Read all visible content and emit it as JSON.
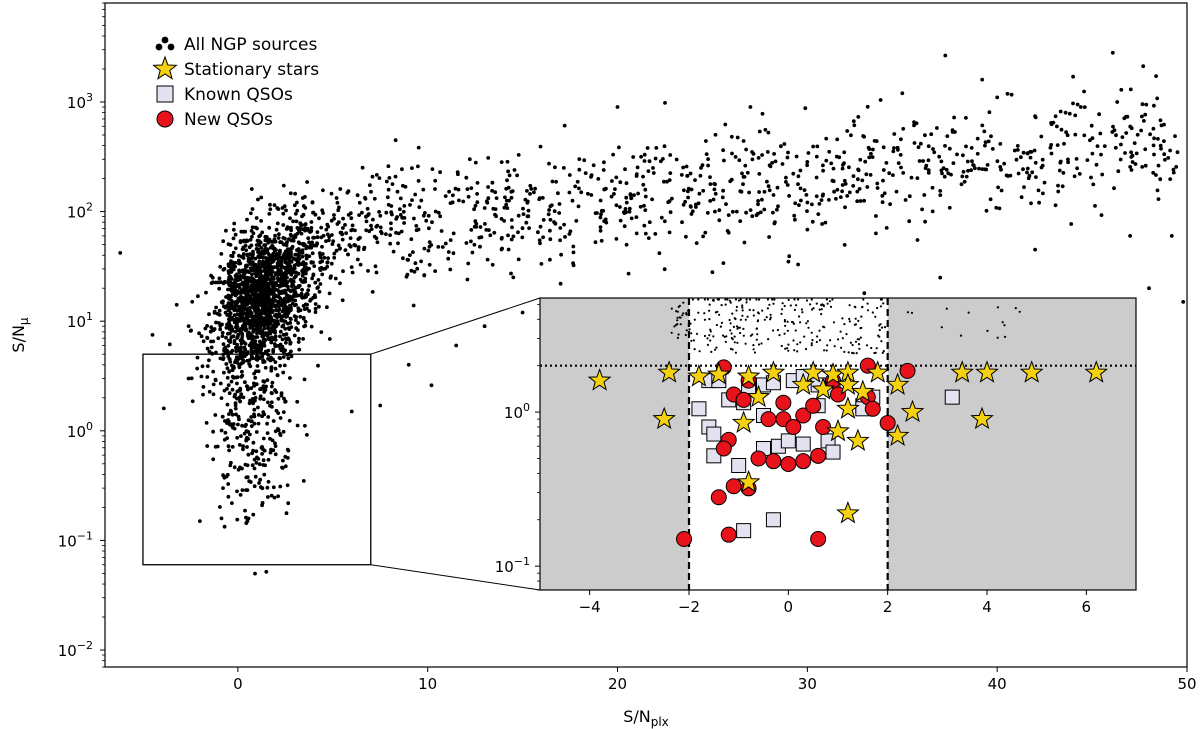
{
  "chart_data": {
    "type": "scatter",
    "xlabel": "S/N",
    "xlabel_sub": "plx",
    "ylabel": "S/N",
    "ylabel_sub": "μ",
    "xlim": [
      -7,
      50
    ],
    "ylim": [
      0.007,
      8000
    ],
    "yscale": "log",
    "x_ticks": [
      0,
      10,
      20,
      30,
      40,
      50
    ],
    "y_ticks": [
      {
        "value": 0.01,
        "exp": "−2"
      },
      {
        "value": 0.1,
        "exp": "−1"
      },
      {
        "value": 1,
        "exp": "0"
      },
      {
        "value": 10,
        "exp": "1"
      },
      {
        "value": 100,
        "exp": "2"
      },
      {
        "value": 1000,
        "exp": "3"
      }
    ],
    "legend": {
      "position": "top-left",
      "entries": [
        {
          "label": "All NGP sources",
          "marker": "dots",
          "color": "#000000"
        },
        {
          "label": "Stationary stars",
          "marker": "star",
          "color": "#f5d10f"
        },
        {
          "label": "Known QSOs",
          "marker": "square",
          "color": "#e2e2f0"
        },
        {
          "label": "New QSOs",
          "marker": "circle",
          "color": "#e8121b"
        }
      ]
    },
    "all_sources_outliers": [
      [
        -6.2,
        42
      ],
      [
        -4.5,
        7.5
      ],
      [
        -3.9,
        1.6
      ],
      [
        -2.6,
        3
      ],
      [
        -2,
        0.15
      ],
      [
        -1.3,
        0.55
      ],
      [
        -0.5,
        0.25
      ],
      [
        0.5,
        0.15
      ],
      [
        1.3,
        0.22
      ],
      [
        6,
        1.5
      ],
      [
        7.5,
        1.7
      ],
      [
        9,
        4
      ],
      [
        10.2,
        2.6
      ],
      [
        11.5,
        6
      ],
      [
        13,
        9
      ],
      [
        15,
        12
      ],
      [
        17,
        22
      ],
      [
        20,
        900
      ],
      [
        22.5,
        980
      ],
      [
        25,
        28
      ],
      [
        27,
        900
      ],
      [
        29,
        35
      ],
      [
        33,
        18
      ],
      [
        35,
        1200
      ],
      [
        37,
        25
      ],
      [
        38,
        14
      ],
      [
        40,
        1100
      ],
      [
        42,
        45
      ],
      [
        44,
        1700
      ],
      [
        45,
        9
      ],
      [
        47,
        60
      ],
      [
        48,
        20
      ],
      [
        48.5,
        130
      ],
      [
        49.2,
        60
      ],
      [
        49.8,
        15
      ],
      [
        39,
        8
      ]
    ],
    "inset": {
      "xlim": [
        -5,
        7
      ],
      "ylim": [
        0.07,
        5.5
      ],
      "yscale": "log",
      "x_ticks": [
        -4,
        -2,
        0,
        2,
        4,
        6
      ],
      "y_ticks": [
        {
          "value": 0.1,
          "exp": "−1"
        },
        {
          "value": 1,
          "exp": "0"
        }
      ],
      "x_cut": [
        -2,
        2
      ],
      "y_cut": 2,
      "zoom_box_main": {
        "x": [
          -5,
          7
        ],
        "y": [
          0.06,
          5
        ]
      },
      "stationary_stars": [
        [
          -3.8,
          1.6
        ],
        [
          -2.5,
          0.9
        ],
        [
          -2.4,
          1.8
        ],
        [
          -1.8,
          1.7
        ],
        [
          -1.4,
          1.75
        ],
        [
          -0.8,
          1.7
        ],
        [
          -0.3,
          1.8
        ],
        [
          0.5,
          1.8
        ],
        [
          0.9,
          1.75
        ],
        [
          1.2,
          1.8
        ],
        [
          -0.6,
          1.25
        ],
        [
          0.3,
          1.5
        ],
        [
          0.7,
          1.4
        ],
        [
          1.2,
          1.5
        ],
        [
          1.8,
          1.8
        ],
        [
          2.2,
          1.5
        ],
        [
          2.5,
          1.0
        ],
        [
          3.5,
          1.8
        ],
        [
          4.0,
          1.8
        ],
        [
          3.9,
          0.9
        ],
        [
          4.9,
          1.8
        ],
        [
          6.2,
          1.8
        ],
        [
          2.2,
          0.7
        ],
        [
          1.4,
          0.65
        ],
        [
          -0.9,
          0.85
        ],
        [
          1.0,
          0.75
        ],
        [
          1.2,
          1.05
        ],
        [
          -0.8,
          0.35
        ],
        [
          1.2,
          0.22
        ],
        [
          1.5,
          1.35
        ]
      ],
      "known_qsos": [
        [
          -1.8,
          1.05
        ],
        [
          -1.6,
          1.6
        ],
        [
          -1.4,
          1.6
        ],
        [
          -1.2,
          1.2
        ],
        [
          -0.8,
          1.4
        ],
        [
          -0.5,
          1.5
        ],
        [
          -0.3,
          1.55
        ],
        [
          0.1,
          1.6
        ],
        [
          0.3,
          1.7
        ],
        [
          0.6,
          1.5
        ],
        [
          0.9,
          1.4
        ],
        [
          1.5,
          1.1
        ],
        [
          1.7,
          1.25
        ],
        [
          -1.6,
          0.8
        ],
        [
          -1.5,
          0.72
        ],
        [
          -1.5,
          0.52
        ],
        [
          -1.0,
          0.45
        ],
        [
          -0.5,
          0.58
        ],
        [
          -0.2,
          0.6
        ],
        [
          0.0,
          0.65
        ],
        [
          0.3,
          0.62
        ],
        [
          0.8,
          0.65
        ],
        [
          0.9,
          0.55
        ],
        [
          -0.5,
          0.95
        ],
        [
          0.6,
          1.1
        ],
        [
          -0.9,
          0.17
        ],
        [
          -0.3,
          0.2
        ],
        [
          1.5,
          1.05
        ],
        [
          3.3,
          1.25
        ],
        [
          -0.9,
          1.15
        ]
      ],
      "new_qsos": [
        [
          -1.3,
          1.95
        ],
        [
          -1.1,
          1.3
        ],
        [
          -0.8,
          1.6
        ],
        [
          -0.9,
          1.2
        ],
        [
          -0.4,
          0.9
        ],
        [
          -0.1,
          0.9
        ],
        [
          -0.1,
          1.15
        ],
        [
          0.3,
          0.95
        ],
        [
          0.5,
          1.1
        ],
        [
          0.9,
          1.6
        ],
        [
          1.0,
          1.3
        ],
        [
          1.6,
          2.0
        ],
        [
          1.6,
          1.25
        ],
        [
          1.7,
          1.05
        ],
        [
          2.4,
          1.85
        ],
        [
          2.0,
          0.85
        ],
        [
          -1.2,
          0.66
        ],
        [
          -1.3,
          0.58
        ],
        [
          -0.6,
          0.5
        ],
        [
          -0.3,
          0.48
        ],
        [
          0.0,
          0.46
        ],
        [
          0.3,
          0.48
        ],
        [
          0.6,
          0.52
        ],
        [
          -1.4,
          0.28
        ],
        [
          -1.1,
          0.33
        ],
        [
          -0.8,
          0.32
        ],
        [
          -2.1,
          0.15
        ],
        [
          -1.2,
          0.16
        ],
        [
          0.6,
          0.15
        ],
        [
          0.1,
          0.8
        ],
        [
          0.7,
          0.8
        ]
      ]
    }
  }
}
